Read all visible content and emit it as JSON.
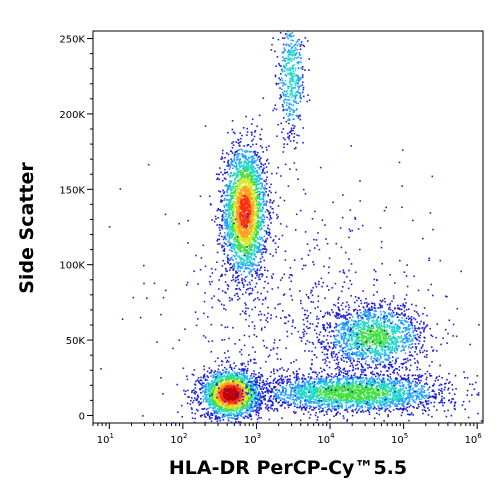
{
  "chart_data": {
    "type": "scatter",
    "subtype": "flow-cytometry-density-dot-plot",
    "title": "",
    "xlabel": "HLA-DR PerCP-Cy™5.5",
    "ylabel": "Side Scatter",
    "x_scale": "log",
    "xlim": [
      6,
      1200000
    ],
    "ylim": [
      -5000,
      255000
    ],
    "x_ticks": [
      {
        "base": "10",
        "exp": "1",
        "value": 10
      },
      {
        "base": "10",
        "exp": "2",
        "value": 100
      },
      {
        "base": "10",
        "exp": "3",
        "value": 1000
      },
      {
        "base": "10",
        "exp": "4",
        "value": 10000
      },
      {
        "base": "10",
        "exp": "5",
        "value": 100000
      },
      {
        "base": "10",
        "exp": "6",
        "value": 1000000
      }
    ],
    "y_ticks": [
      {
        "label": "0",
        "value": 0
      },
      {
        "label": "50K",
        "value": 50000
      },
      {
        "label": "100K",
        "value": 100000
      },
      {
        "label": "150K",
        "value": 150000
      },
      {
        "label": "200K",
        "value": 200000
      },
      {
        "label": "250K",
        "value": 250000
      }
    ],
    "grid": false,
    "legend": "none",
    "density_colors": [
      "#1f1fd6",
      "#1fa0ff",
      "#20d8c8",
      "#40e040",
      "#d8e820",
      "#ffa020",
      "#ff3010",
      "#c00000"
    ],
    "populations": [
      {
        "description_free": true,
        "x_center": 700,
        "x_log_sigma": 0.15,
        "y_center": 135000,
        "y_sigma": 22000,
        "peak_density": 0.85,
        "count": 2600
      },
      {
        "x_center": 3000,
        "x_log_sigma": 0.1,
        "y_center": 225000,
        "y_sigma": 22000,
        "peak_density": 0.35,
        "count": 500
      },
      {
        "x_center": 450,
        "x_log_sigma": 0.2,
        "y_center": 14000,
        "y_sigma": 8000,
        "peak_density": 1.0,
        "count": 2100
      },
      {
        "x_center": 20000,
        "x_log_sigma": 0.65,
        "y_center": 15000,
        "y_sigma": 6500,
        "peak_density": 0.5,
        "count": 2400
      },
      {
        "x_center": 40000,
        "x_log_sigma": 0.35,
        "y_center": 52000,
        "y_sigma": 11000,
        "peak_density": 0.45,
        "count": 1500
      },
      {
        "x_center": 5000,
        "x_log_sigma": 0.9,
        "y_center": 60000,
        "y_sigma": 45000,
        "peak_density": 0.08,
        "count": 700
      }
    ]
  }
}
